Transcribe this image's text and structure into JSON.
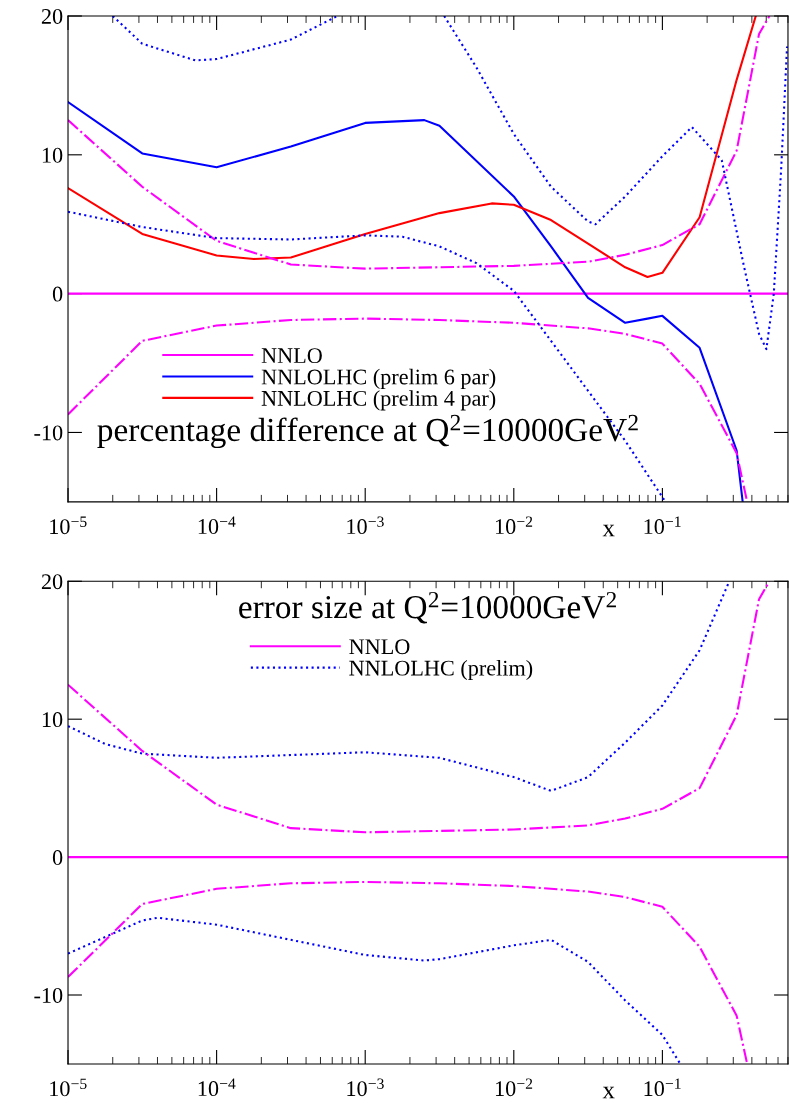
{
  "chart_data": [
    {
      "type": "line",
      "title": "percentage difference at Q$^{2}$=10000GeV$^{2}$",
      "xlabel": "x",
      "log": "x",
      "xlim": [
        1e-05,
        0.7
      ],
      "xticks": [
        {
          "value": 1e-05,
          "label": "10$^{−5}$"
        },
        {
          "value": 0.0001,
          "label": "10$^{−4}$"
        },
        {
          "value": 0.001,
          "label": "10$^{−3}$"
        },
        {
          "value": 0.01,
          "label": "10$^{−2}$"
        },
        {
          "value": 0.1,
          "label": "10$^{−1}$"
        }
      ],
      "ylim": [
        -15,
        20
      ],
      "yticks": [
        -10,
        0,
        10,
        20
      ],
      "legend": "bottom left",
      "grid": false,
      "series": [
        {
          "name": "NNLO",
          "color": "#ff00ff",
          "line_style": "solid",
          "x": [
            1e-05,
            0.7
          ],
          "values": [
            0,
            0
          ]
        },
        {
          "name": "NNLOLHC (prelim 6 par)",
          "color": "#0000ff",
          "line_style": "solid",
          "x": [
            1e-05,
            3.16e-05,
            0.0001,
            0.000316,
            0.001,
            0.0025,
            0.00316,
            0.01,
            0.0178,
            0.0316,
            0.0562,
            0.0794,
            0.1,
            0.178,
            0.316,
            0.347
          ],
          "values": [
            13.8,
            10.1,
            9.1,
            10.6,
            12.3,
            12.5,
            12.1,
            7.0,
            3.4,
            -0.3,
            -2.1,
            -1.8,
            -1.6,
            -3.9,
            -11.3,
            -15
          ]
        },
        {
          "name": "NNLOLHC (prelim 4 par)",
          "color": "#ff0000",
          "line_style": "solid",
          "x": [
            1e-05,
            3.16e-05,
            0.0001,
            0.000178,
            0.000316,
            0.001,
            0.00316,
            0.0071,
            0.01,
            0.0178,
            0.0316,
            0.0562,
            0.0794,
            0.1,
            0.178,
            0.316,
            0.425
          ],
          "values": [
            7.6,
            4.3,
            2.75,
            2.5,
            2.6,
            4.3,
            5.8,
            6.5,
            6.4,
            5.3,
            3.6,
            1.9,
            1.2,
            1.5,
            5.5,
            15.4,
            20
          ]
        },
        {
          "color": "#ff00ff",
          "line_style": "dashdot",
          "x": [
            1e-05,
            3.16e-05,
            0.0001,
            0.000316,
            0.001,
            0.00316,
            0.01,
            0.0316,
            0.0562,
            0.1,
            0.178,
            0.316,
            0.447,
            0.525
          ],
          "values": [
            12.5,
            7.7,
            3.8,
            2.1,
            1.8,
            1.9,
            2.0,
            2.3,
            2.8,
            3.5,
            5.0,
            10.3,
            18.7,
            20
          ]
        },
        {
          "color": "#ff00ff",
          "line_style": "dashdot",
          "x": [
            1e-05,
            3.16e-05,
            0.0001,
            0.000316,
            0.001,
            0.00316,
            0.01,
            0.0316,
            0.0562,
            0.1,
            0.178,
            0.316,
            0.372
          ],
          "values": [
            -8.7,
            -3.4,
            -2.3,
            -1.9,
            -1.8,
            -1.9,
            -2.1,
            -2.5,
            -2.9,
            -3.6,
            -6.5,
            -11.5,
            -15
          ]
        },
        {
          "color": "#0000ff",
          "line_style": "dotted",
          "x": [
            2e-05,
            3.16e-05,
            7.2e-05,
            0.0001,
            0.000316,
            0.00065,
            0.001,
            0.0034,
            0.0056,
            0.01,
            0.0178,
            0.0316,
            0.0355,
            0.0562,
            0.1,
            0.158,
            0.251,
            0.355,
            0.447,
            0.501,
            0.562,
            0.631,
            0.69
          ],
          "values": [
            20,
            18.0,
            16.8,
            16.9,
            18.3,
            20,
            null,
            20,
            16.3,
            11.5,
            7.7,
            5.2,
            5.0,
            7.0,
            9.9,
            12.0,
            9.6,
            1.9,
            -2.9,
            -4.0,
            0.0,
            9.1,
            17.8
          ]
        },
        {
          "color": "#0000ff",
          "line_style": "dotted",
          "x": [
            1e-05,
            3.16e-05,
            0.0001,
            0.000316,
            0.001,
            0.00178,
            0.00316,
            0.0056,
            0.01,
            0.0178,
            0.0316,
            0.0562,
            0.105
          ],
          "values": [
            5.9,
            4.8,
            4.0,
            3.9,
            4.2,
            4.1,
            3.4,
            2.2,
            0.2,
            -3.4,
            -7.0,
            -10.6,
            -15
          ]
        }
      ]
    },
    {
      "type": "line",
      "title": "error size at Q$^{2}$=10000GeV$^{2}$",
      "xlabel": "x",
      "log": "x",
      "xlim": [
        1e-05,
        0.7
      ],
      "xticks": [
        {
          "value": 1e-05,
          "label": "10$^{−5}$"
        },
        {
          "value": 0.0001,
          "label": "10$^{−4}$"
        },
        {
          "value": 0.001,
          "label": "10$^{−3}$"
        },
        {
          "value": 0.01,
          "label": "10$^{−2}$"
        },
        {
          "value": 0.1,
          "label": "10$^{−1}$"
        }
      ],
      "ylim": [
        -15,
        20
      ],
      "yticks": [
        -10,
        0,
        10,
        20
      ],
      "legend": "top",
      "grid": false,
      "series": [
        {
          "name": "NNLO",
          "color": "#ff00ff",
          "line_style": "solid",
          "x": [
            1e-05,
            0.7
          ],
          "values": [
            0,
            0
          ]
        },
        {
          "name": "NNLOLHC (prelim)",
          "color": "#0000ff",
          "line_style": "dotted",
          "x": [
            1e-05,
            1.78e-05,
            3.16e-05,
            0.0001,
            0.000316,
            0.001,
            0.00316,
            0.01,
            0.0178,
            0.0316,
            0.0562,
            0.1,
            0.178,
            0.282
          ],
          "values": [
            9.5,
            8.2,
            7.5,
            7.2,
            7.4,
            7.6,
            7.2,
            5.8,
            4.8,
            5.8,
            8.3,
            11.0,
            15.0,
            20
          ]
        },
        {
          "color": "#0000ff",
          "line_style": "dotted",
          "x": [
            1e-05,
            3.16e-05,
            4e-05,
            0.0001,
            0.000316,
            0.001,
            0.0025,
            0.00316,
            0.01,
            0.0178,
            0.0316,
            0.0562,
            0.1,
            0.132
          ],
          "values": [
            -7.0,
            -4.6,
            -4.4,
            -4.9,
            -6.0,
            -7.1,
            -7.5,
            -7.4,
            -6.4,
            -6.0,
            -7.6,
            -10.4,
            -12.9,
            -15
          ]
        },
        {
          "color": "#ff00ff",
          "line_style": "dashdot",
          "x": [
            1e-05,
            3.16e-05,
            0.0001,
            0.000316,
            0.001,
            0.00316,
            0.01,
            0.0316,
            0.0562,
            0.1,
            0.178,
            0.316,
            0.447,
            0.525
          ],
          "values": [
            12.5,
            7.7,
            3.8,
            2.1,
            1.8,
            1.9,
            2.0,
            2.3,
            2.8,
            3.5,
            5.0,
            10.3,
            18.7,
            20
          ]
        },
        {
          "color": "#ff00ff",
          "line_style": "dashdot",
          "x": [
            1e-05,
            3.16e-05,
            0.0001,
            0.000316,
            0.001,
            0.00316,
            0.01,
            0.0316,
            0.0562,
            0.1,
            0.178,
            0.316,
            0.372
          ],
          "values": [
            -8.7,
            -3.4,
            -2.3,
            -1.9,
            -1.8,
            -1.9,
            -2.1,
            -2.5,
            -2.9,
            -3.6,
            -6.5,
            -11.5,
            -15
          ]
        }
      ]
    }
  ]
}
